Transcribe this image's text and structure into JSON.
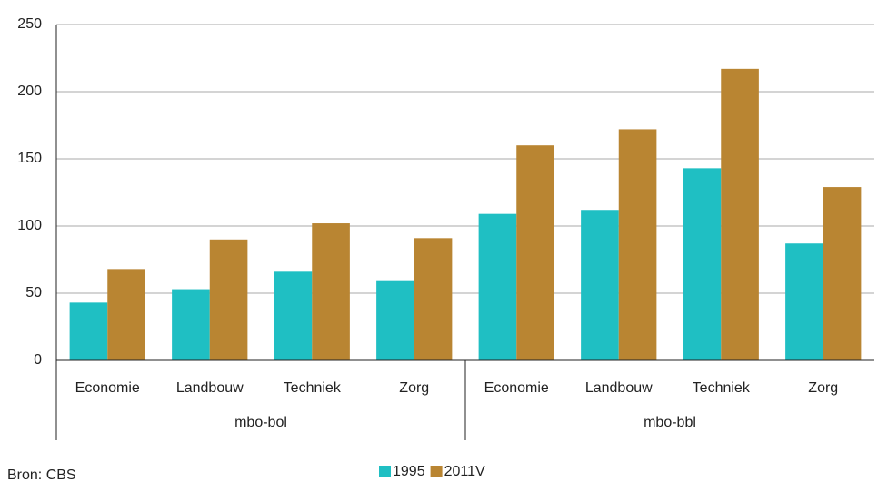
{
  "chart_data": {
    "type": "bar",
    "categories": [
      "Economie",
      "Landbouw",
      "Techniek",
      "Zorg",
      "Economie",
      "Landbouw",
      "Techniek",
      "Zorg"
    ],
    "groups": [
      "mbo-bol",
      "mbo-bbl"
    ],
    "series": [
      {
        "name": "1995",
        "color": "#1fbfc3",
        "values": [
          43,
          53,
          66,
          59,
          109,
          112,
          143,
          87
        ]
      },
      {
        "name": "2011V",
        "color": "#b98532",
        "values": [
          68,
          90,
          102,
          91,
          160,
          172,
          217,
          129
        ]
      }
    ],
    "ylim": [
      0,
      250
    ],
    "yticks": [
      0,
      50,
      100,
      150,
      200,
      250
    ],
    "grid": true,
    "source": "Bron: CBS"
  }
}
